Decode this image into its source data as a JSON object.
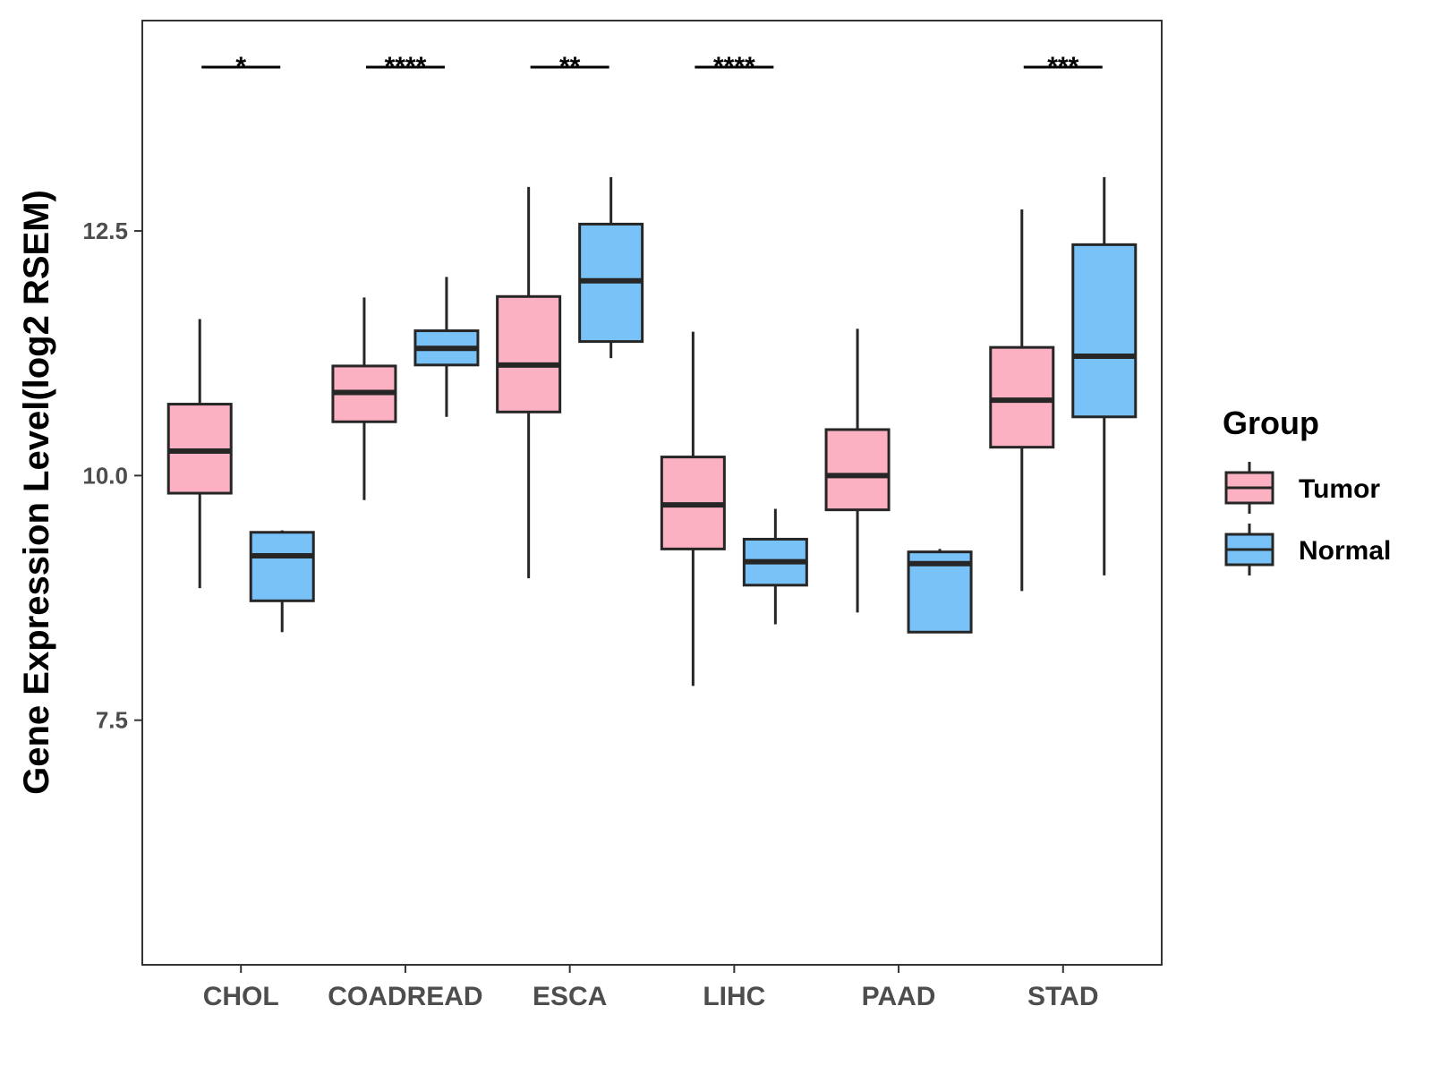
{
  "chart_data": {
    "type": "box",
    "title": "",
    "xlabel": "",
    "ylabel": "Gene Expression Level(log2 RSEM)",
    "ylim": [
      5.0,
      14.65
    ],
    "yticks": [
      7.5,
      10.0,
      12.5
    ],
    "ytick_labels": [
      "7.5",
      "10.0",
      "12.5"
    ],
    "grid": false,
    "legend_position": "right",
    "legend_title": "Group",
    "categories": [
      "CHOL",
      "COADREAD",
      "ESCA",
      "LIHC",
      "PAAD",
      "STAD"
    ],
    "series": [
      {
        "name": "Tumor",
        "color": "#FBB1C2",
        "boxes": [
          {
            "whisker_low": 8.85,
            "q1": 9.82,
            "median": 10.25,
            "q3": 10.73,
            "whisker_high": 11.6
          },
          {
            "whisker_low": 9.75,
            "q1": 10.55,
            "median": 10.85,
            "q3": 11.12,
            "whisker_high": 11.82
          },
          {
            "whisker_low": 8.95,
            "q1": 10.65,
            "median": 11.13,
            "q3": 11.83,
            "whisker_high": 12.95
          },
          {
            "whisker_low": 7.85,
            "q1": 9.25,
            "median": 9.7,
            "q3": 10.19,
            "whisker_high": 11.47
          },
          {
            "whisker_low": 8.6,
            "q1": 9.65,
            "median": 10.0,
            "q3": 10.47,
            "whisker_high": 11.5
          },
          {
            "whisker_low": 8.82,
            "q1": 10.29,
            "median": 10.77,
            "q3": 11.31,
            "whisker_high": 12.72
          }
        ]
      },
      {
        "name": "Normal",
        "color": "#78C2F7",
        "boxes": [
          {
            "whisker_low": 8.4,
            "q1": 8.72,
            "median": 9.18,
            "q3": 9.42,
            "whisker_high": 9.44
          },
          {
            "whisker_low": 10.6,
            "q1": 11.13,
            "median": 11.3,
            "q3": 11.48,
            "whisker_high": 12.03
          },
          {
            "whisker_low": 11.2,
            "q1": 11.37,
            "median": 11.99,
            "q3": 12.57,
            "whisker_high": 13.05
          },
          {
            "whisker_low": 8.48,
            "q1": 8.88,
            "median": 9.12,
            "q3": 9.35,
            "whisker_high": 9.66
          },
          {
            "whisker_low": 8.4,
            "q1": 8.4,
            "median": 9.1,
            "q3": 9.22,
            "whisker_high": 9.25
          },
          {
            "whisker_low": 8.98,
            "q1": 10.6,
            "median": 11.22,
            "q3": 12.36,
            "whisker_high": 13.05
          }
        ]
      }
    ],
    "significance": [
      "*",
      "****",
      "**",
      "****",
      "",
      "***"
    ]
  }
}
